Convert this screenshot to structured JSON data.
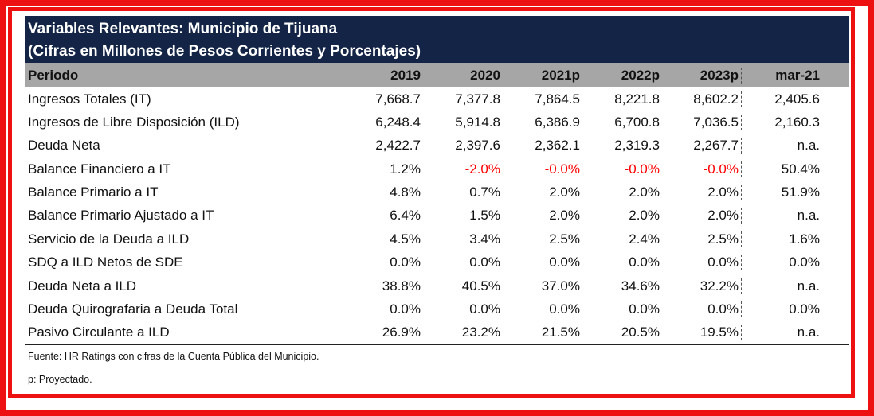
{
  "title": {
    "line1": "Variables Relevantes: Municipio de Tijuana",
    "line2": "(Cifras en Millones de Pesos Corrientes y Porcentajes)"
  },
  "header": [
    "Periodo",
    "2019",
    "2020",
    "2021p",
    "2022p",
    "2023p",
    "mar-21"
  ],
  "rows": [
    {
      "label": "Ingresos Totales (IT)",
      "values": [
        "7,668.7",
        "7,377.8",
        "7,864.5",
        "8,221.8",
        "8,602.2",
        "2,405.6"
      ]
    },
    {
      "label": "Ingresos de Libre Disposición (ILD)",
      "values": [
        "6,248.4",
        "5,914.8",
        "6,386.9",
        "6,700.8",
        "7,036.5",
        "2,160.3"
      ]
    },
    {
      "label": "Deuda Neta",
      "values": [
        "2,422.7",
        "2,397.6",
        "2,362.1",
        "2,319.3",
        "2,267.7",
        "n.a."
      ]
    },
    {
      "label": "Balance Financiero a IT",
      "values": [
        "1.2%",
        "-2.0%",
        "-0.0%",
        "-0.0%",
        "-0.0%",
        "50.4%"
      ]
    },
    {
      "label": "Balance Primario a IT",
      "values": [
        "4.8%",
        "0.7%",
        "2.0%",
        "2.0%",
        "2.0%",
        "51.9%"
      ]
    },
    {
      "label": "Balance Primario Ajustado a IT",
      "values": [
        "6.4%",
        "1.5%",
        "2.0%",
        "2.0%",
        "2.0%",
        "n.a."
      ]
    },
    {
      "label": "Servicio de la Deuda a ILD",
      "values": [
        "4.5%",
        "3.4%",
        "2.5%",
        "2.4%",
        "2.5%",
        "1.6%"
      ]
    },
    {
      "label": "SDQ a ILD Netos de SDE",
      "values": [
        "0.0%",
        "0.0%",
        "0.0%",
        "0.0%",
        "0.0%",
        "0.0%"
      ]
    },
    {
      "label": "Deuda Neta a ILD",
      "values": [
        "38.8%",
        "40.5%",
        "37.0%",
        "34.6%",
        "32.2%",
        "n.a."
      ]
    },
    {
      "label": "Deuda Quirografaria a Deuda Total",
      "values": [
        "0.0%",
        "0.0%",
        "0.0%",
        "0.0%",
        "0.0%",
        "0.0%"
      ]
    },
    {
      "label": "Pasivo Circulante a ILD",
      "values": [
        "26.9%",
        "23.2%",
        "21.5%",
        "20.5%",
        "19.5%",
        "n.a."
      ]
    }
  ],
  "notes": {
    "source": "Fuente: HR Ratings con cifras de la Cuenta Pública del Municipio.",
    "footnote": "p: Proyectado."
  },
  "colors": {
    "frame": "#ee1111",
    "title_bg": "#132446",
    "header_bg": "#a6a6a6",
    "negative": "#ff0000"
  }
}
